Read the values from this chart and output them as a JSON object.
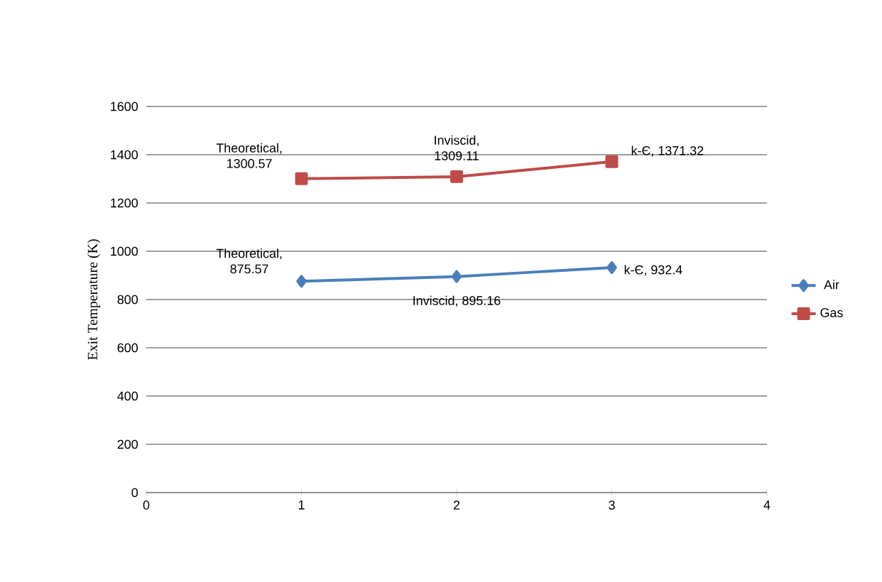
{
  "chart_data": {
    "type": "line",
    "ylabel": "Exit Temperature (K)",
    "x": [
      1,
      2,
      3
    ],
    "series": [
      {
        "name": "Air",
        "color": "#4a7ebb",
        "marker": "diamond",
        "values": [
          875.57,
          895.16,
          932.4
        ],
        "value_labels": [
          "Theoretical, 875.57",
          "Inviscid, 895.16",
          "k-Є, 932.4"
        ]
      },
      {
        "name": "Gas",
        "color": "#be4b48",
        "marker": "square",
        "values": [
          1300.57,
          1309.11,
          1371.32
        ],
        "value_labels": [
          "Theoretical, 1300.57",
          "Inviscid, 1309.11",
          "k-Є, 1371.32"
        ]
      }
    ],
    "xlim": [
      0,
      4
    ],
    "xticks": [
      0,
      1,
      2,
      3,
      4
    ],
    "ylim": [
      0,
      1600
    ],
    "yticks": [
      0,
      200,
      400,
      600,
      800,
      1000,
      1200,
      1400,
      1600
    ],
    "grid": "y",
    "legend": "right",
    "line_style": "solid"
  }
}
